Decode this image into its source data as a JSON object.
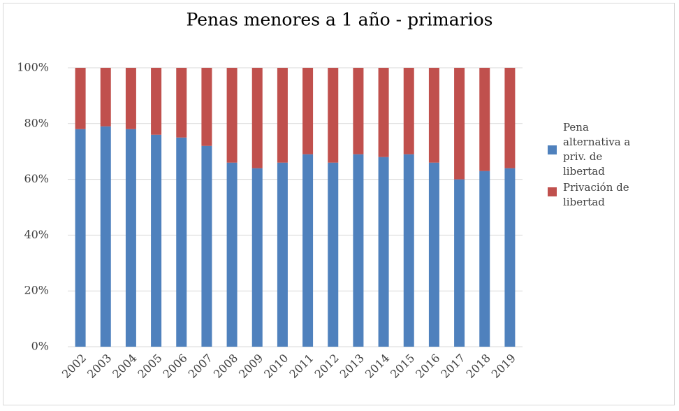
{
  "chart_data": {
    "type": "stacked-bar-100",
    "title": "Penas menores a 1 año - primarios",
    "categories": [
      "2002",
      "2003",
      "2004",
      "2005",
      "2006",
      "2007",
      "2008",
      "2009",
      "2010",
      "2011",
      "2012",
      "2013",
      "2014",
      "2015",
      "2016",
      "2017",
      "2018",
      "2019"
    ],
    "series": [
      {
        "name": "Pena alternativa a priv. de libertad",
        "color": "#4f81bd",
        "values": [
          78,
          79,
          78,
          76,
          75,
          72,
          66,
          64,
          66,
          69,
          66,
          69,
          68,
          69,
          66,
          60,
          63,
          64
        ]
      },
      {
        "name": "Privación de libertad",
        "color": "#c0504d",
        "values": [
          22,
          21,
          22,
          24,
          25,
          28,
          34,
          36,
          34,
          31,
          34,
          31,
          32,
          31,
          34,
          40,
          37,
          36
        ]
      }
    ],
    "ylim": [
      0,
      100
    ],
    "yticks": [
      {
        "value": 0,
        "label": "0%"
      },
      {
        "value": 20,
        "label": "20%"
      },
      {
        "value": 40,
        "label": "40%"
      },
      {
        "value": 60,
        "label": "60%"
      },
      {
        "value": 80,
        "label": "80%"
      },
      {
        "value": 100,
        "label": "100%"
      }
    ],
    "grid": true,
    "legend": "right"
  }
}
